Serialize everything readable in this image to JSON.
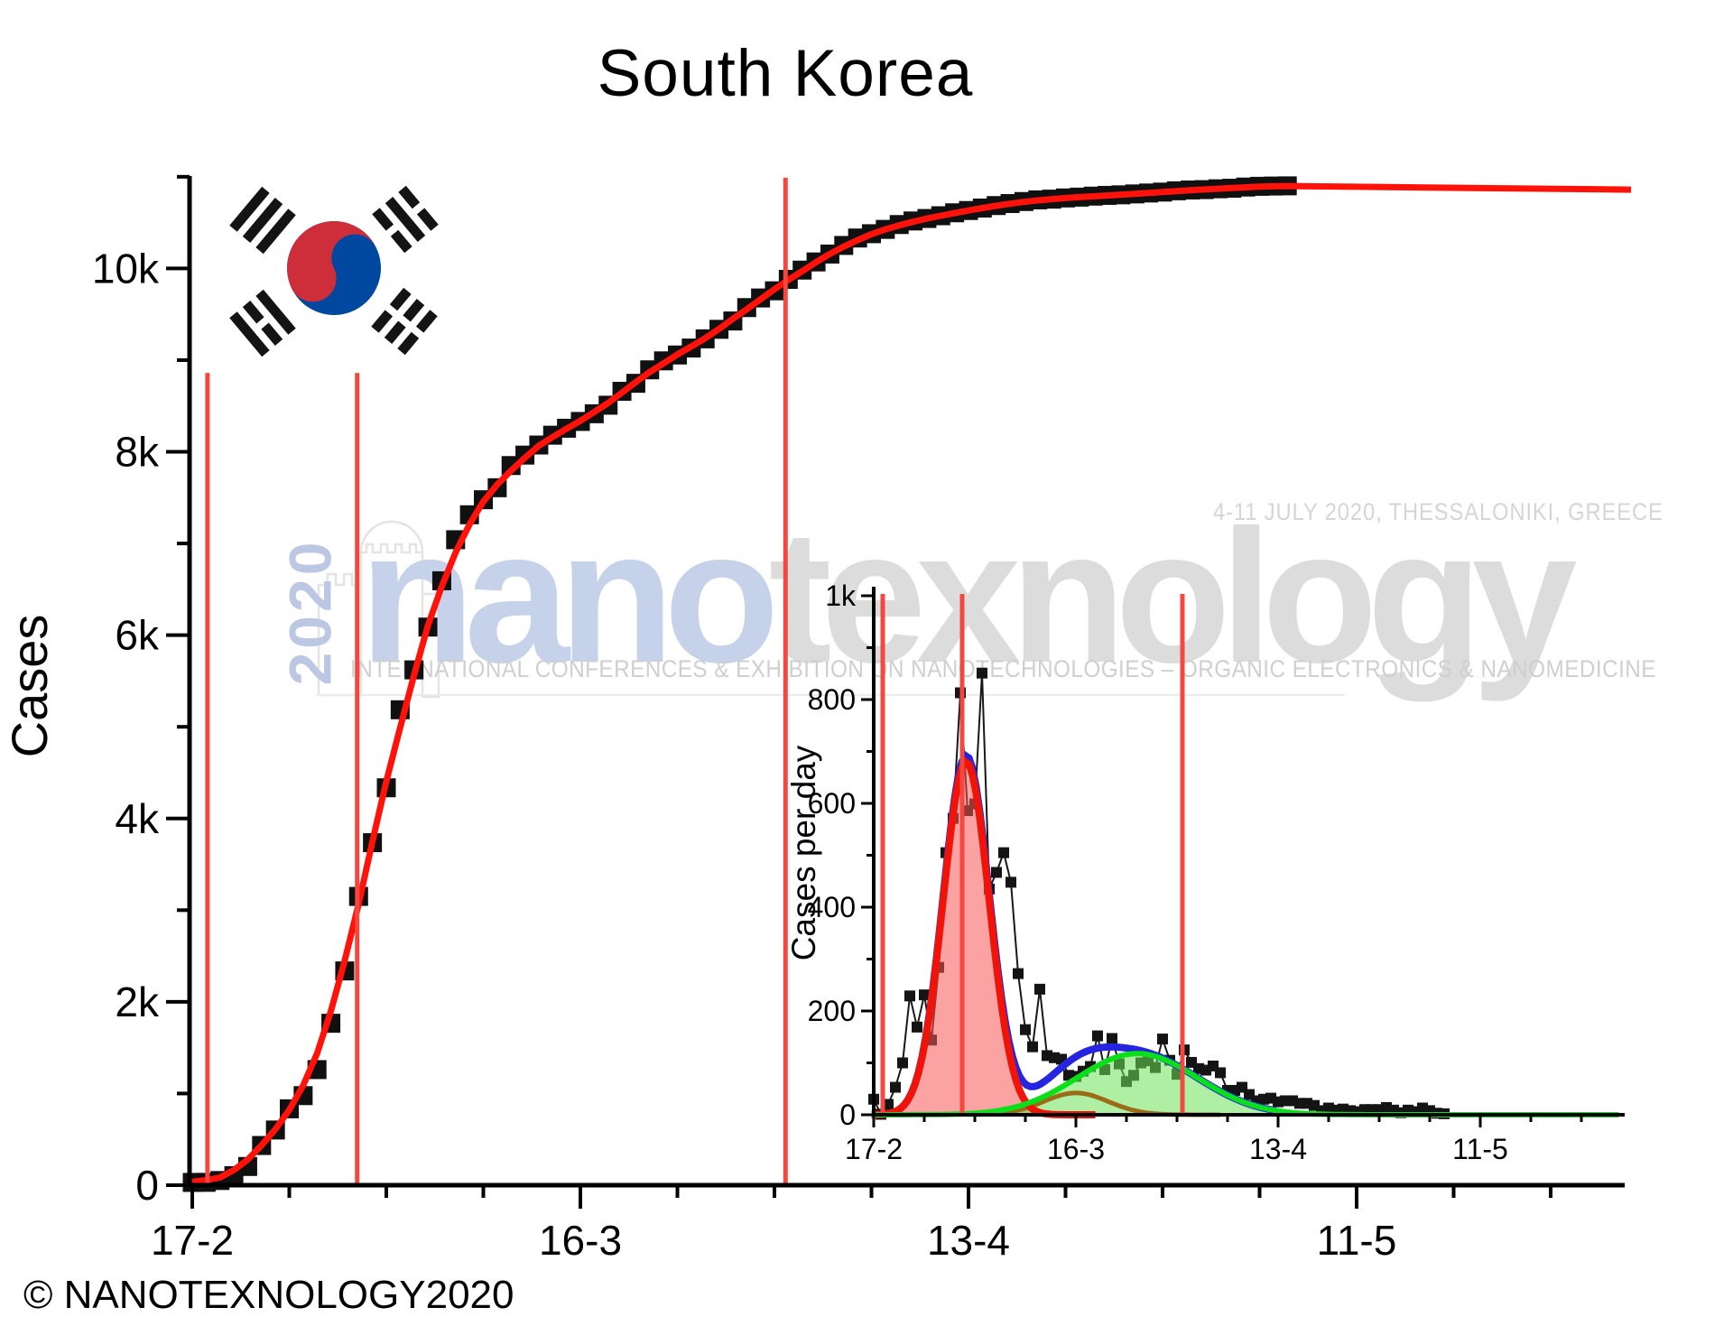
{
  "title": "South Korea",
  "copyright": "© NANOTEXNOLOGY2020",
  "watermark": {
    "nano": "nano",
    "texnology": "texnology",
    "year_vertical": "2020",
    "date_line": "4-11 JULY 2020, THESSALONIKI, GREECE",
    "conference_line": "INTERNATIONAL CONFERENCES & EXHIBITION ON NANOTECHNOLOGIES – ORGANIC ELECTRONICS & NANOMEDICINE",
    "colors": {
      "nano": "#c6d2e9",
      "texnology": "#dcdcdc",
      "year": "#bcc8e3",
      "text": "#d0d0d0"
    }
  },
  "flag": {
    "red": "#cd2e3a",
    "blue": "#0047a0",
    "black": "#141414"
  },
  "chart_data": [
    {
      "type": "scatter",
      "name": "cumulative-cases",
      "title": "South Korea",
      "ylabel": "Cases",
      "x_tick_labels": [
        "17-2",
        "16-3",
        "13-4",
        "11-5"
      ],
      "x_tick_days": [
        0,
        28,
        56,
        84
      ],
      "x_minor_days": [
        7,
        14,
        21,
        35,
        42,
        49,
        63,
        70,
        77,
        91,
        98
      ],
      "y_tick_labels": [
        "0",
        "2k",
        "4k",
        "6k",
        "8k",
        "10k"
      ],
      "y_tick_values": [
        0,
        2000,
        4000,
        6000,
        8000,
        10000
      ],
      "ylim": [
        0,
        11000
      ],
      "start_date_label": "17-2",
      "marker_color": "#101010",
      "fit_color": "#ff120a",
      "fit_plateau": 10860,
      "vline_color": "#f4473f",
      "vlines": [
        {
          "day": 1.1,
          "top_value": 8860
        },
        {
          "day": 11.9,
          "top_value": 8860
        },
        {
          "day": 42.8,
          "top_value": 10990
        }
      ],
      "cumulative_cases": [
        30,
        31,
        51,
        104,
        204,
        433,
        602,
        833,
        977,
        1261,
        1766,
        2337,
        3150,
        3736,
        4335,
        5186,
        5621,
        6088,
        6593,
        7041,
        7313,
        7477,
        7608,
        7850,
        7964,
        8074,
        8181,
        8257,
        8331,
        8415,
        8508,
        8660,
        8747,
        8894,
        8992,
        9056,
        9132,
        9232,
        9336,
        9427,
        9573,
        9678,
        9756,
        9881,
        9982,
        10071,
        10157,
        10251,
        10332,
        10379,
        10426,
        10479,
        10518,
        10545,
        10575,
        10607,
        10632,
        10659,
        10686,
        10708,
        10730,
        10748,
        10756,
        10769,
        10778,
        10789,
        10797,
        10803,
        10813,
        10823,
        10833,
        10847,
        10856,
        10860,
        10869,
        10875,
        10888,
        10896,
        10899,
        10901
      ]
    },
    {
      "type": "scatter+peak-fit",
      "name": "daily-cases-inset",
      "ylabel": "Cases per day",
      "x_tick_labels": [
        "17-2",
        "16-3",
        "13-4",
        "11-5"
      ],
      "x_tick_days": [
        0,
        28,
        56,
        84
      ],
      "x_minor_days": [
        7,
        14,
        21,
        35,
        42,
        49,
        63,
        70,
        77,
        91,
        98
      ],
      "y_tick_labels": [
        "0",
        "200",
        "400",
        "600",
        "800",
        "1k"
      ],
      "y_tick_values": [
        0,
        200,
        400,
        600,
        800,
        1000
      ],
      "ylim": [
        0,
        1000
      ],
      "marker_color": "#141414",
      "line_color": "#181818",
      "sum_color": "#2525e0",
      "vline_color": "#f4473f",
      "vlines_days": [
        1.25,
        12.25,
        42.75
      ],
      "components": [
        {
          "name": "first-wave-peak",
          "stroke": "#f01408",
          "fill": "rgba(248,85,85,0.55)",
          "amplitude": 680,
          "center_day": 12.8,
          "sigma_days": 3.2
        },
        {
          "name": "middle-peak",
          "stroke": "#9b6b16",
          "fill": "none",
          "amplitude": 42,
          "center_day": 28.0,
          "sigma_days": 4.5
        },
        {
          "name": "second-wave-peak",
          "stroke": "#0ae019",
          "fill": "rgba(110,225,90,0.55)",
          "amplitude": 118,
          "center_day": 36.5,
          "sigma_days": 8.3
        }
      ],
      "daily_cases": [
        30,
        1,
        20,
        53,
        100,
        229,
        169,
        231,
        144,
        284,
        505,
        571,
        813,
        586,
        599,
        851,
        435,
        467,
        505,
        448,
        272,
        164,
        131,
        242,
        114,
        110,
        107,
        76,
        74,
        84,
        93,
        152,
        87,
        147,
        98,
        64,
        76,
        100,
        104,
        91,
        146,
        105,
        78,
        125,
        101,
        89,
        86,
        94,
        81,
        47,
        47,
        53,
        39,
        27,
        30,
        32,
        25,
        27,
        27,
        22,
        22,
        18,
        8,
        13,
        9,
        11,
        8,
        6,
        10,
        10,
        10,
        14,
        9,
        4,
        9,
        6,
        13,
        8,
        3,
        2
      ]
    }
  ]
}
